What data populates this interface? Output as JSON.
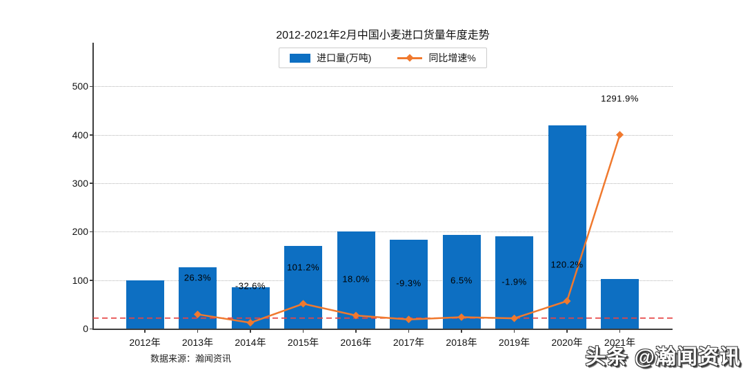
{
  "title": "2012-2021年2月中国小麦进口货量年度走势",
  "legend": {
    "bar_label": "进口量(万吨)",
    "line_label": "同比增速%"
  },
  "source_note": "数据来源：瀚闻资讯",
  "watermark": "头条 @瀚闻资讯",
  "colors": {
    "bar": "#0d6fc2",
    "line": "#f0792e",
    "zero_line": "#e64545",
    "grid": "#b3b3b3",
    "axis": "#3c3c3c",
    "text": "#111111"
  },
  "chart_data": {
    "type": "bar+line",
    "title": "2012-2021年2月中国小麦进口货量年度走势",
    "categories": [
      "2012年",
      "2013年",
      "2014年",
      "2015年",
      "2016年",
      "2017年",
      "2018年",
      "2019年",
      "2020年",
      "2021年"
    ],
    "series": [
      {
        "name": "进口量(万吨)",
        "type": "bar",
        "axis": "primary",
        "unit": "万吨",
        "values": [
          100,
          126,
          85,
          170,
          201,
          183,
          194,
          191,
          420,
          103
        ]
      },
      {
        "name": "同比增速%",
        "type": "line",
        "axis": "secondary-hidden",
        "unit": "%",
        "values": [
          null,
          26.3,
          -32.6,
          101.2,
          18.0,
          -9.3,
          6.5,
          -1.9,
          120.2,
          1291.9
        ],
        "point_labels": [
          "",
          "26.3%",
          "-32.6%",
          "101.2%",
          "18.0%",
          "-9.3%",
          "6.5%",
          "-1.9%",
          "120.2%",
          "1291.9%"
        ]
      }
    ],
    "yticks": [
      0,
      100,
      200,
      300,
      400,
      500
    ],
    "ylim": [
      0,
      590
    ],
    "grid": "dotted-horizontal",
    "legend_position": "top-center",
    "zero_growth_reference_line": true,
    "secondary_scale": {
      "zero_primary": 21.7,
      "primary_per_percent": 0.2928
    }
  }
}
